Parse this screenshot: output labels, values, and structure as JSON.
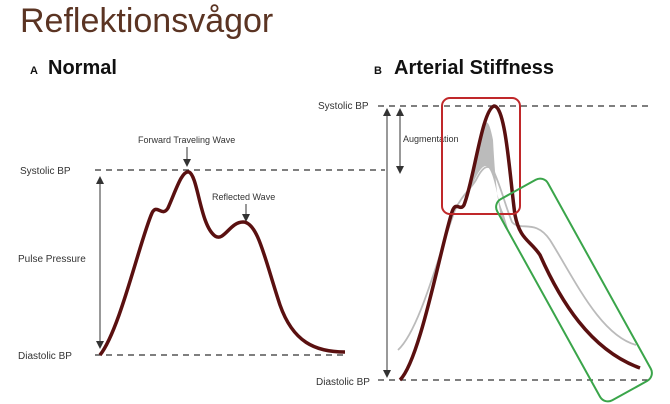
{
  "header": {
    "title": "Reflektionsvågor"
  },
  "panels": [
    {
      "letter": "A",
      "title": "Normal",
      "labels": {
        "forward": "Forward Traveling Wave",
        "reflected": "Reflected Wave",
        "systolic": "Systolic BP",
        "pulse_pressure": "Pulse Pressure",
        "diastolic": "Diastolic BP"
      }
    },
    {
      "letter": "B",
      "title": "Arterial Stiffness",
      "labels": {
        "systolic": "Systolic BP",
        "augmentation": "Augmentation",
        "diastolic": "Diastolic BP"
      }
    }
  ]
}
